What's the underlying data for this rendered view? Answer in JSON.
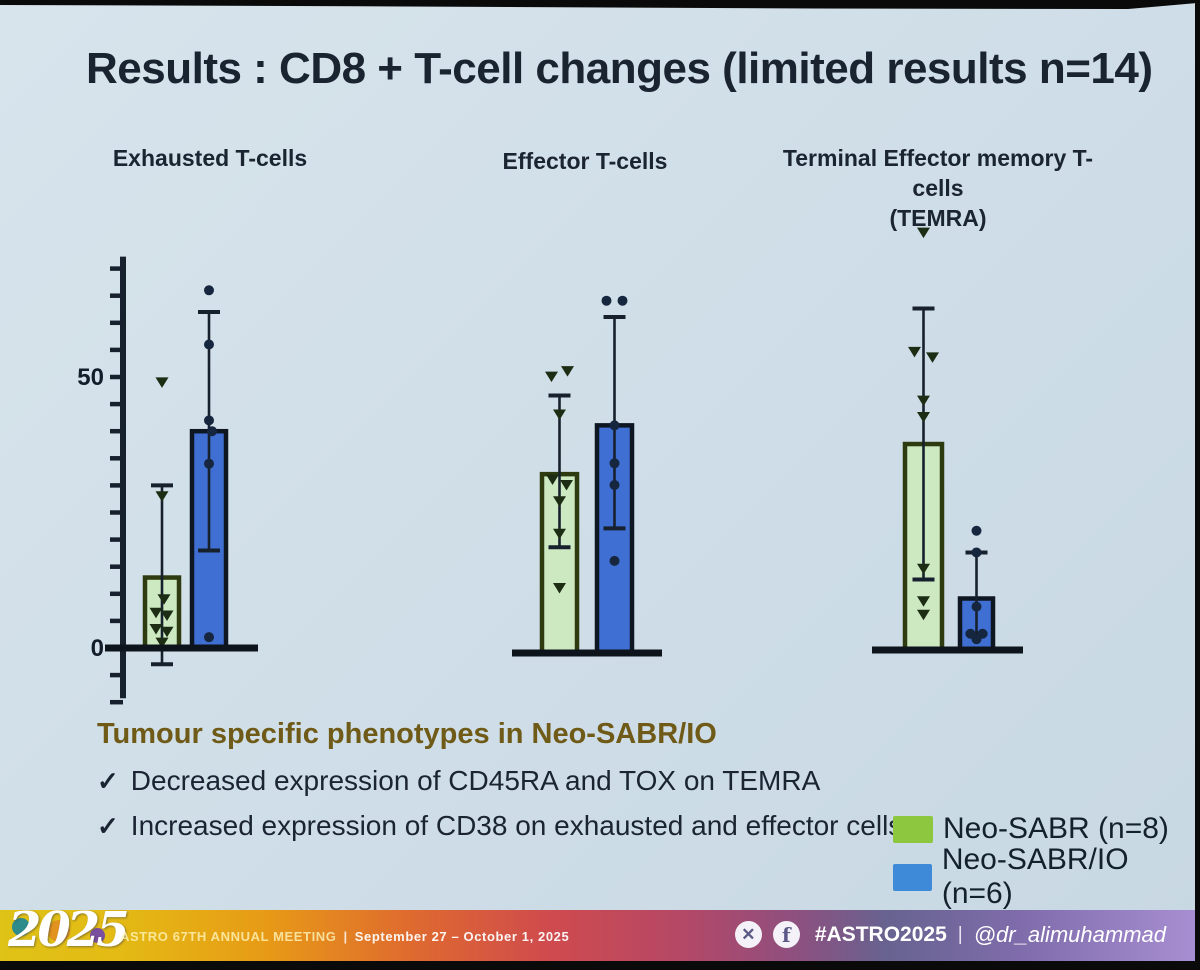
{
  "slide": {
    "title": "Results : CD8 + T-cell changes (limited results n=14)"
  },
  "chart_data": {
    "type": "bar",
    "title": "CD8 + T-cell changes (limited results n=14)",
    "ylabel": "",
    "axis": {
      "tick_min": -10,
      "tick_max": 70,
      "tick_step": 5,
      "labels": [
        {
          "value": 0,
          "text": "0"
        },
        {
          "value": 50,
          "text": "50"
        }
      ]
    },
    "groups": [
      {
        "name": "Neo-SABR (n=8)",
        "legend_color": "#8dc63f",
        "bar_fill": "#cde9c2",
        "bar_stroke": "#2e3a10",
        "marker": "triangle",
        "marker_color": "#1c2d14"
      },
      {
        "name": "Neo-SABR/IO (n=6)",
        "legend_color": "#3e8ad8",
        "bar_fill": "#3f6fd2",
        "bar_stroke": "#0e1622",
        "marker": "circle",
        "marker_color": "#16263f"
      }
    ],
    "panels": [
      {
        "title": "Exhausted T-cells",
        "subtitle": "",
        "series": [
          {
            "group": "Neo-SABR",
            "bar": 13,
            "err_low": -3,
            "err_high": 30,
            "points": [
              [
                0,
                49
              ],
              [
                0,
                28
              ],
              [
                2,
                9
              ],
              [
                -6,
                6.5
              ],
              [
                5,
                6
              ],
              [
                -6,
                3.5
              ],
              [
                5,
                3
              ],
              [
                0,
                1
              ]
            ]
          },
          {
            "group": "Neo-SABR/IO",
            "bar": 40,
            "err_low": 18,
            "err_high": 62,
            "points": [
              [
                0,
                66
              ],
              [
                0,
                56
              ],
              [
                0,
                42
              ],
              [
                3,
                40
              ],
              [
                0,
                34
              ],
              [
                0,
                2
              ]
            ]
          }
        ]
      },
      {
        "title": "Effector T-cells",
        "subtitle": "",
        "series": [
          {
            "group": "Neo-SABR",
            "bar": 33,
            "err_low": 19.5,
            "err_high": 47.5,
            "points": [
              [
                -8,
                51
              ],
              [
                8,
                52
              ],
              [
                0,
                44
              ],
              [
                -7,
                32
              ],
              [
                7,
                31
              ],
              [
                0,
                28
              ],
              [
                0,
                22
              ],
              [
                0,
                12
              ]
            ]
          },
          {
            "group": "Neo-SABR/IO",
            "bar": 42,
            "err_low": 23,
            "err_high": 62,
            "points": [
              [
                -8,
                65
              ],
              [
                8,
                65
              ],
              [
                0,
                42
              ],
              [
                0,
                35
              ],
              [
                0,
                31
              ],
              [
                0,
                17
              ]
            ]
          }
        ]
      },
      {
        "title": "Terminal Effector memory T-cells",
        "subtitle": "(TEMRA)",
        "series": [
          {
            "group": "Neo-SABR",
            "bar": 38,
            "err_low": 13,
            "err_high": 63,
            "points": [
              [
                0,
                77
              ],
              [
                -9,
                55
              ],
              [
                9,
                54
              ],
              [
                0,
                46
              ],
              [
                0,
                43
              ],
              [
                0,
                15
              ],
              [
                0,
                9
              ],
              [
                0,
                6.5
              ]
            ]
          },
          {
            "group": "Neo-SABR/IO",
            "bar": 9.5,
            "err_low": 3,
            "err_high": 18,
            "points": [
              [
                0,
                22
              ],
              [
                0,
                18
              ],
              [
                0,
                8
              ],
              [
                -6,
                3
              ],
              [
                6,
                3
              ],
              [
                0,
                2
              ]
            ]
          }
        ]
      }
    ]
  },
  "notes": {
    "heading": "Tumour specific phenotypes in Neo-SABR/IO",
    "bullet_mark": "✓",
    "bullets": [
      "Decreased expression of CD45RA and TOX on TEMRA",
      "Increased expression of CD38 on exhausted and effector cells"
    ]
  },
  "legend": {
    "items": [
      {
        "label": "Neo-SABR (n=8)",
        "color": "#8dc63f"
      },
      {
        "label": "Neo-SABR/IO (n=6)",
        "color": "#3e8ad8"
      }
    ]
  },
  "footer": {
    "logo_text": "2025",
    "meeting_text": "ASTRO 67TH ANNUAL MEETING",
    "separator": "|",
    "dates_text": "September 27 – October 1, 2025",
    "social": {
      "hashtag": "#ASTRO2025",
      "separator": "|",
      "handle": "@dr_alimuhammad",
      "icons": [
        "x-icon",
        "facebook-icon"
      ]
    }
  }
}
